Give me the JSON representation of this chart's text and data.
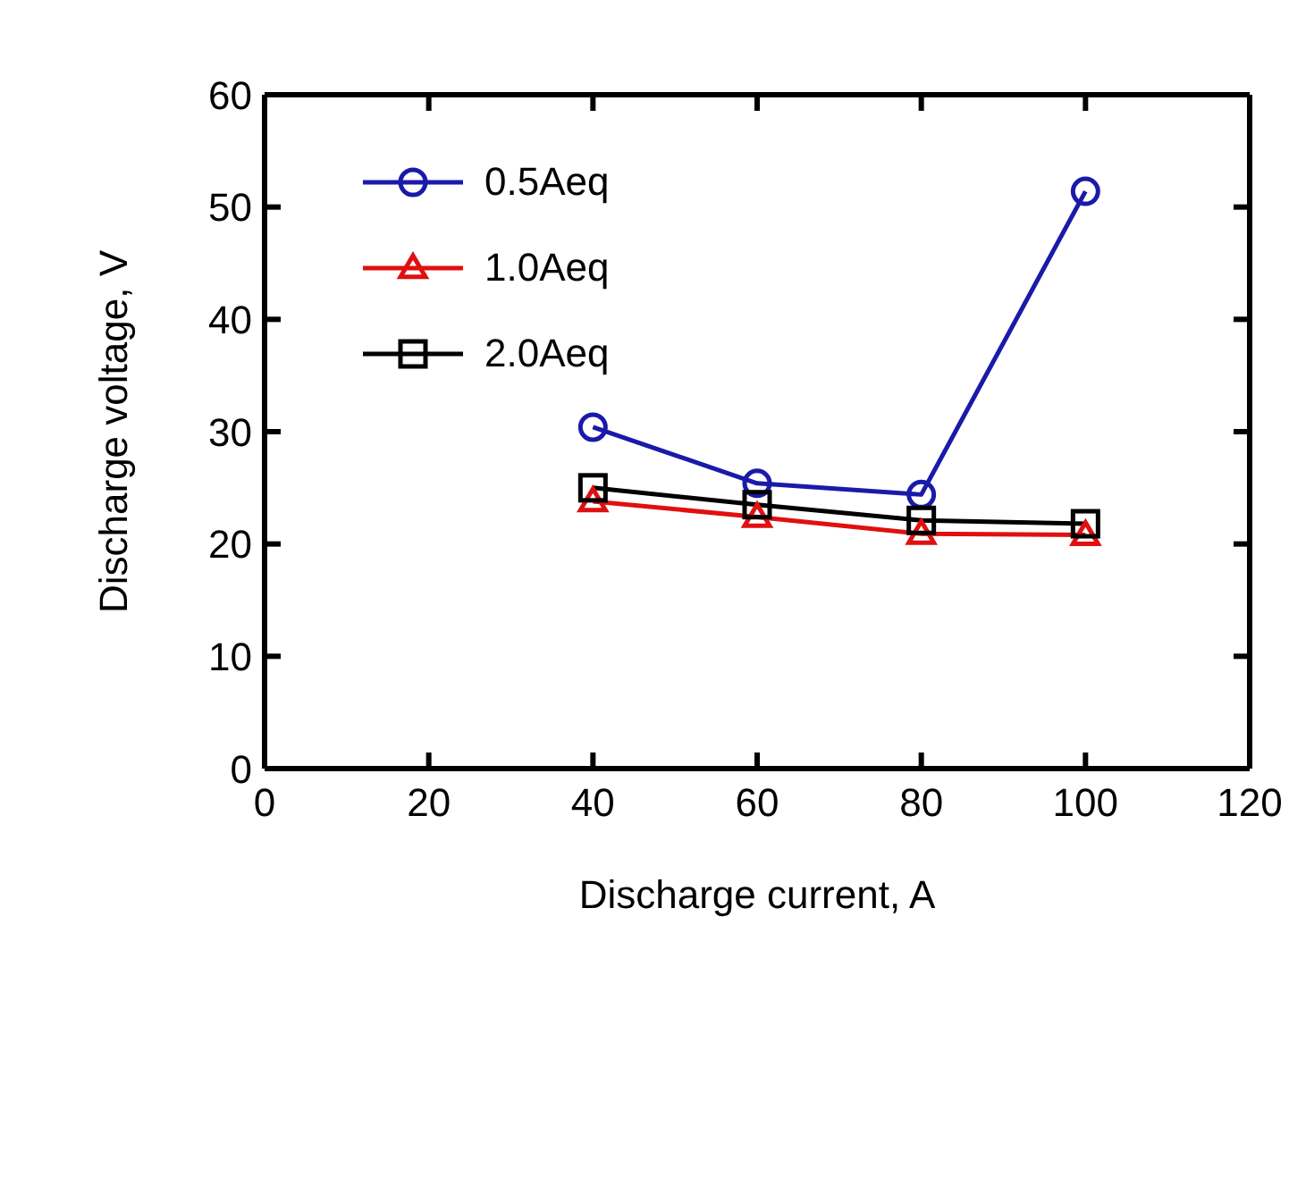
{
  "chart_data": {
    "type": "line",
    "xlabel": "Discharge current, A",
    "ylabel": "Discharge voltage, V",
    "x": [
      40,
      60,
      80,
      100
    ],
    "series": [
      {
        "name": "0.5Aeq",
        "color": "#1a1aaa",
        "marker": "circle",
        "values": [
          30.4,
          25.4,
          24.4,
          51.4
        ]
      },
      {
        "name": "1.0Aeq",
        "color": "#e01010",
        "marker": "triangle",
        "values": [
          23.8,
          22.4,
          20.9,
          20.8
        ]
      },
      {
        "name": "2.0Aeq",
        "color": "#000000",
        "marker": "square",
        "values": [
          25.0,
          23.5,
          22.1,
          21.8
        ]
      }
    ],
    "xlim": [
      0,
      120
    ],
    "xticks": [
      0,
      20,
      40,
      60,
      80,
      100,
      120
    ],
    "ylim": [
      0,
      60
    ],
    "yticks": [
      0,
      10,
      20,
      30,
      40,
      50,
      60
    ],
    "grid": false,
    "legend": "top left",
    "line_style": "solid"
  }
}
